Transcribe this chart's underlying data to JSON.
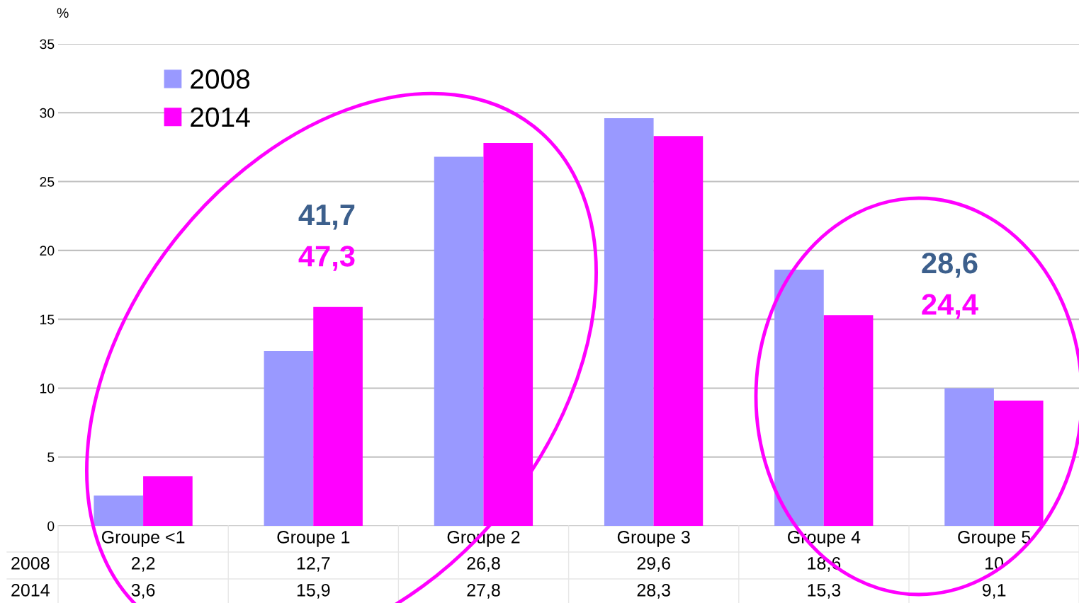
{
  "chart_data": {
    "type": "bar",
    "ylabel": "%",
    "categories": [
      "Groupe <1",
      "Groupe 1",
      "Groupe 2",
      "Groupe 3",
      "Groupe 4",
      "Groupe 5"
    ],
    "series": [
      {
        "name": "2008",
        "color": "#9999ff",
        "values": [
          2.2,
          12.7,
          26.8,
          29.6,
          18.6,
          10
        ],
        "value_labels": [
          "2,2",
          "12,7",
          "26,8",
          "29,6",
          "18,6",
          "10"
        ]
      },
      {
        "name": "2014",
        "color": "#ff00ff",
        "values": [
          3.6,
          15.9,
          27.8,
          28.3,
          15.3,
          9.1
        ],
        "value_labels": [
          "3,6",
          "15,9",
          "27,8",
          "28,3",
          "15,3",
          "9,1"
        ]
      }
    ],
    "ylim": [
      0,
      35
    ],
    "yticks": [
      0,
      5,
      10,
      15,
      20,
      25,
      30,
      35
    ],
    "grid": "y",
    "legend": "top left",
    "annotations": [
      "41,7",
      "47,3",
      "28,6",
      "24,4"
    ]
  }
}
